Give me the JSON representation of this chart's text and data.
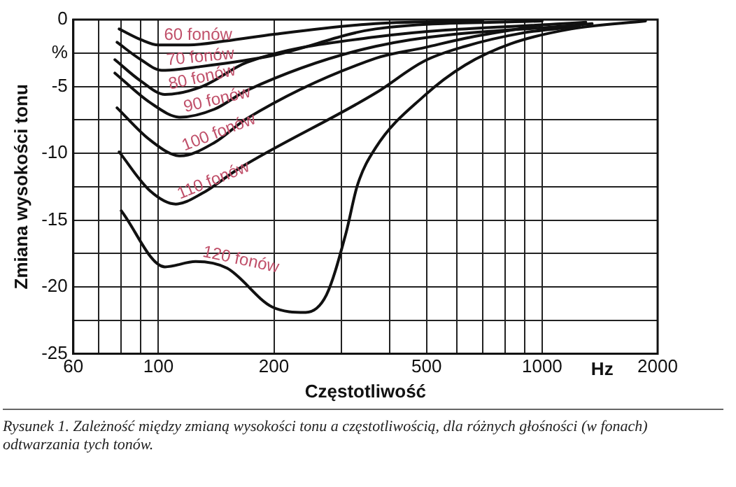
{
  "chart_data": {
    "type": "line",
    "xlabel": "Częstotliwość",
    "ylabel": "Zmiana wysokości tonu",
    "log": "x",
    "grid": true,
    "legend": false,
    "marker": "none",
    "line_style": "solid",
    "xlim": [
      60,
      2000
    ],
    "ylim": [
      -25,
      0
    ],
    "xticks": [
      60,
      {
        "value": 70,
        "label": null
      },
      {
        "value": 80,
        "label": null
      },
      {
        "value": 90,
        "label": null
      },
      100,
      200,
      {
        "value": 300,
        "label": null
      },
      {
        "value": 400,
        "label": null
      },
      500,
      {
        "value": 600,
        "label": null
      },
      {
        "value": 700,
        "label": null
      },
      {
        "value": 800,
        "label": null
      },
      {
        "value": 900,
        "label": null
      },
      1000,
      2000
    ],
    "yticks": [
      0,
      {
        "value": -2.5,
        "label": "%"
      },
      -5,
      {
        "value": -7.5,
        "label": null
      },
      -10,
      {
        "value": -12.5,
        "label": null
      },
      -15,
      {
        "value": -17.5,
        "label": null
      },
      -20,
      {
        "value": -22.5,
        "label": null
      },
      -25
    ],
    "series": [
      {
        "name": "60 fonów",
        "color": "#111111",
        "x": [
          79,
          90,
          100,
          120,
          150,
          200,
          368,
          700
        ],
        "values": [
          -0.7,
          -1.5,
          -1.9,
          -1.9,
          -1.6,
          -1.1,
          -0.3,
          -0.1
        ]
      },
      {
        "name": "70 fonów",
        "color": "#111111",
        "x": [
          78,
          90,
          102,
          130,
          198,
          368,
          1000
        ],
        "values": [
          -1.7,
          -3.0,
          -3.8,
          -3.5,
          -2.7,
          -0.7,
          -0.1
        ]
      },
      {
        "name": "80 fonów",
        "color": "#111111",
        "x": [
          77,
          90,
          104,
          130,
          170,
          368,
          1300
        ],
        "values": [
          -3.0,
          -4.6,
          -5.6,
          -5.0,
          -3.2,
          -1.3,
          -0.2
        ]
      },
      {
        "name": "90 fonów",
        "color": "#111111",
        "x": [
          77,
          95,
          114,
          140,
          170,
          368,
          1350
        ],
        "values": [
          -4.0,
          -6.2,
          -7.3,
          -6.7,
          -5.3,
          -2.0,
          -0.3
        ]
      },
      {
        "name": "100 fonów",
        "color": "#111111",
        "x": [
          78,
          95,
          114,
          140,
          170,
          368,
          493,
          630,
          1000
        ],
        "values": [
          -6.6,
          -9.0,
          -10.2,
          -9.2,
          -7.4,
          -2.9,
          -2.1,
          -1.4,
          -0.4
        ]
      },
      {
        "name": "110 fonów",
        "color": "#111111",
        "x": [
          79,
          95,
          111,
          130,
          161,
          368,
          493,
          630,
          890,
          1250
        ],
        "values": [
          -9.9,
          -12.8,
          -13.8,
          -13.0,
          -11.2,
          -5.5,
          -3.1,
          -2.0,
          -1.0,
          -0.5
        ]
      },
      {
        "name": "120 fonów",
        "color": "#111111",
        "x": [
          80,
          104,
          125,
          151,
          198,
          242,
          274,
          308,
          330,
          368,
          493,
          630,
          830,
          1190,
          1860
        ],
        "values": [
          -14.3,
          -18.5,
          -18.1,
          -18.6,
          -21.5,
          -21.9,
          -20.6,
          -16.0,
          -12.4,
          -9.6,
          -5.7,
          -3.4,
          -1.8,
          -0.7,
          -0.1
        ]
      }
    ],
    "annotations": [
      "Hz",
      "Rysunek 1. Zależność między zmianą wysokości tonu a częstotliwością, dla różnych głośności (w fonach) odtwarzania tych tonów."
    ]
  }
}
